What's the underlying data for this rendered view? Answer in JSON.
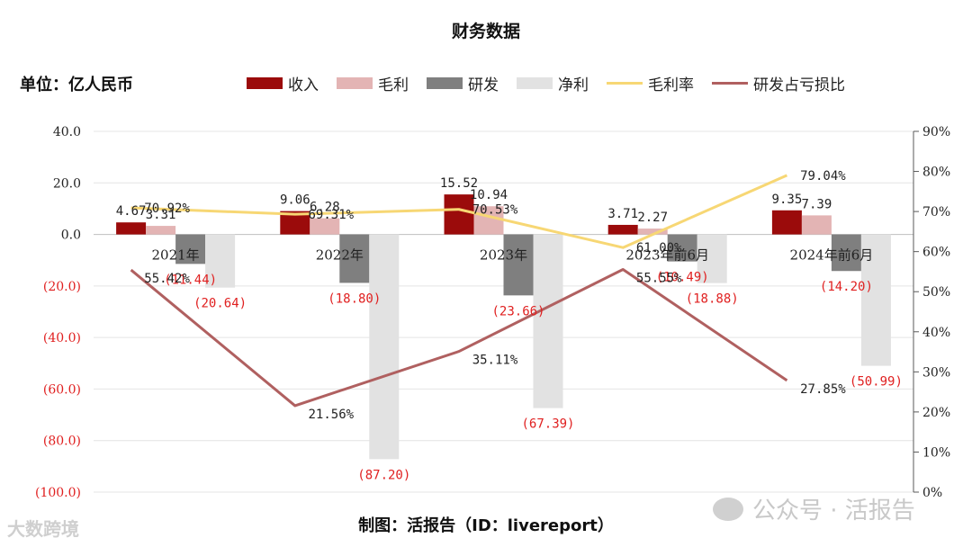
{
  "header": {
    "title": "财务数据",
    "unit": "单位：亿人民币",
    "footer": "制图：活报告（ID：livereport）",
    "watermark_left": "大数跨境",
    "watermark_right": "公众号 · 活报告"
  },
  "legend": [
    {
      "label": "收入",
      "color": "#9b0b0b",
      "kind": "bar"
    },
    {
      "label": "毛利",
      "color": "#e3b4b4",
      "kind": "bar"
    },
    {
      "label": "研发",
      "color": "#7f7f7f",
      "kind": "bar"
    },
    {
      "label": "净利",
      "color": "#e2e2e2",
      "kind": "bar"
    },
    {
      "label": "毛利率",
      "color": "#f7d774",
      "kind": "line"
    },
    {
      "label": "研发占亏损比",
      "color": "#b06060",
      "kind": "line"
    }
  ],
  "chart_data": {
    "type": "bar",
    "title": "财务数据",
    "categories": [
      "2021年",
      "2022年",
      "2023年",
      "2023年前6月",
      "2024年前6月"
    ],
    "left_axis": {
      "ylim": [
        -100,
        40
      ],
      "ticks": [
        "40.0",
        "20.0",
        "0.0",
        "(20.0)",
        "(40.0)",
        "(60.0)",
        "(80.0)",
        "(100.0)"
      ],
      "tick_values": [
        40,
        20,
        0,
        -20,
        -40,
        -60,
        -80,
        -100
      ]
    },
    "right_axis": {
      "ylim": [
        0,
        90
      ],
      "ticks": [
        "0%",
        "10%",
        "20%",
        "30%",
        "40%",
        "50%",
        "60%",
        "70%",
        "80%",
        "90%"
      ],
      "tick_values": [
        0,
        10,
        20,
        30,
        40,
        50,
        60,
        70,
        80,
        90
      ]
    },
    "series": [
      {
        "name": "收入",
        "type": "bar",
        "color": "#9b0b0b",
        "values": [
          4.67,
          9.06,
          15.52,
          3.71,
          9.35
        ],
        "labels": [
          "4.67",
          "9.06",
          "15.52",
          "3.71",
          "9.35"
        ]
      },
      {
        "name": "毛利",
        "type": "bar",
        "color": "#e3b4b4",
        "values": [
          3.31,
          6.28,
          10.94,
          2.27,
          7.39
        ],
        "labels": [
          "3.31",
          "6.28",
          "10.94",
          "2.27",
          "7.39"
        ]
      },
      {
        "name": "研发",
        "type": "bar",
        "color": "#7f7f7f",
        "values": [
          -11.44,
          -18.8,
          -23.66,
          -10.49,
          -14.2
        ],
        "labels": [
          "(11.44)",
          "(18.80)",
          "(23.66)",
          "(10.49)",
          "(14.20)"
        ]
      },
      {
        "name": "净利",
        "type": "bar",
        "color": "#e2e2e2",
        "values": [
          -20.64,
          -87.2,
          -67.39,
          -18.88,
          -50.99
        ],
        "labels": [
          "(20.64)",
          "(87.20)",
          "(67.39)",
          "(18.88)",
          "(50.99)"
        ]
      },
      {
        "name": "毛利率",
        "type": "line",
        "axis": "right",
        "color": "#f7d774",
        "values": [
          70.92,
          69.31,
          70.53,
          61.0,
          79.04
        ],
        "labels": [
          "70.92%",
          "69.31%",
          "70.53%",
          "61.00%",
          "79.04%"
        ]
      },
      {
        "name": "研发占亏损比",
        "type": "line",
        "axis": "right",
        "color": "#b06060",
        "values": [
          55.42,
          21.56,
          35.11,
          55.55,
          27.85
        ],
        "labels": [
          "55.42%",
          "21.56%",
          "35.11%",
          "55.55%",
          "27.85%"
        ]
      }
    ],
    "grid": true,
    "legend_position": "top"
  }
}
